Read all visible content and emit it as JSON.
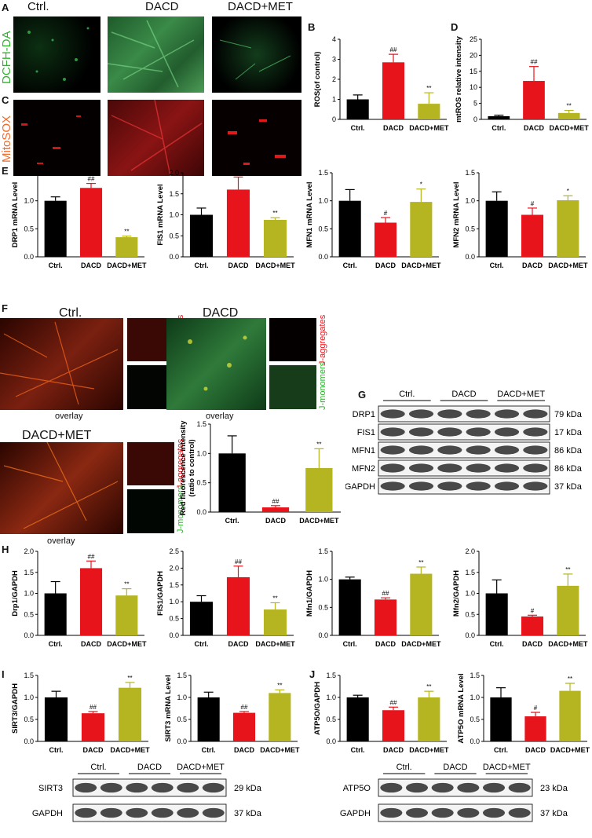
{
  "colors": {
    "ctrl": "#000000",
    "dacd": "#e8141c",
    "met": "#b5b522",
    "green_text": "#2bb52b",
    "red_text": "#e8141c",
    "orange_text": "#f06a2a"
  },
  "panels": {
    "A": "A",
    "B": "B",
    "C": "C",
    "D": "D",
    "E": "E",
    "F": "F",
    "G": "G",
    "H": "H",
    "I": "I",
    "J": "J"
  },
  "micro_a": {
    "col1": "Ctrl.",
    "col2": "DACD",
    "col3": "DACD+MET",
    "row_label": "DCFH-DA"
  },
  "micro_c": {
    "row_label": "MitoSOX"
  },
  "micro_f": {
    "ctrl_title": "Ctrl.",
    "dacd_title": "DACD",
    "met_title": "DACD+MET",
    "overlay": "overlay",
    "j_agg": "J-aggregates",
    "j_mono": "J-monomers"
  },
  "blot_g": {
    "groups": [
      "Ctrl.",
      "DACD",
      "DACD+MET"
    ],
    "rows": [
      {
        "name": "DRP1",
        "kda": "79 kDa"
      },
      {
        "name": "FIS1",
        "kda": "17 kDa"
      },
      {
        "name": "MFN1",
        "kda": "86 kDa"
      },
      {
        "name": "MFN2",
        "kda": "86 kDa"
      },
      {
        "name": "GAPDH",
        "kda": "37 kDa"
      }
    ]
  },
  "blot_i": {
    "groups": [
      "Ctrl.",
      "DACD",
      "DACD+MET"
    ],
    "rows": [
      {
        "name": "SIRT3",
        "kda": "29 kDa"
      },
      {
        "name": "GAPDH",
        "kda": "37 kDa"
      }
    ]
  },
  "blot_j": {
    "groups": [
      "Ctrl.",
      "DACD",
      "DACD+MET"
    ],
    "rows": [
      {
        "name": "ATP5O",
        "kda": "23 kDa"
      },
      {
        "name": "GAPDH",
        "kda": "37 kDa"
      }
    ]
  },
  "chart_data": [
    {
      "id": "B",
      "type": "bar",
      "categories": [
        "Ctrl.",
        "DACD",
        "DACD+MET"
      ],
      "values": [
        1.0,
        2.85,
        0.78
      ],
      "errors": [
        0.22,
        0.4,
        0.55
      ],
      "sig": [
        "",
        "##",
        "**"
      ],
      "ylabel": "ROS(of control)",
      "ylim": [
        0,
        4
      ],
      "yticks": [
        "0",
        "1",
        "2",
        "3",
        "4"
      ]
    },
    {
      "id": "D",
      "type": "bar",
      "categories": [
        "Ctrl.",
        "DACD",
        "DACD+MET"
      ],
      "values": [
        1.0,
        12.0,
        2.0
      ],
      "errors": [
        0.3,
        4.5,
        0.8
      ],
      "sig": [
        "",
        "##",
        "**"
      ],
      "ylabel": "mtROS relative intensity",
      "ylim": [
        0,
        25
      ],
      "yticks": [
        "0",
        "5",
        "10",
        "15",
        "20",
        "25"
      ]
    },
    {
      "id": "E1",
      "type": "bar",
      "categories": [
        "Ctrl.",
        "DACD",
        "DACD+MET"
      ],
      "values": [
        1.0,
        1.23,
        0.35
      ],
      "errors": [
        0.07,
        0.08,
        0.02
      ],
      "sig": [
        "",
        "##",
        "**"
      ],
      "ylabel": "DRP1 mRNA Level",
      "ylim": [
        0,
        1.5
      ],
      "yticks": [
        "0.0",
        "0.5",
        "1.0",
        "1.5"
      ]
    },
    {
      "id": "E2",
      "type": "bar",
      "categories": [
        "Ctrl.",
        "DACD",
        "DACD+MET"
      ],
      "values": [
        1.0,
        1.6,
        0.88
      ],
      "errors": [
        0.16,
        0.3,
        0.05
      ],
      "sig": [
        "",
        "##",
        "**"
      ],
      "ylabel": "FIS1 mRNA Level",
      "ylim": [
        0,
        2.0
      ],
      "yticks": [
        "0.0",
        "0.5",
        "1.0",
        "1.5",
        "2.0"
      ]
    },
    {
      "id": "E3",
      "type": "bar",
      "categories": [
        "Ctrl.",
        "DACD",
        "DACD+MET"
      ],
      "values": [
        1.0,
        0.61,
        0.98
      ],
      "errors": [
        0.2,
        0.09,
        0.23
      ],
      "sig": [
        "",
        "#",
        "*"
      ],
      "ylabel": "MFN1 mRNA Level",
      "ylim": [
        0,
        1.5
      ],
      "yticks": [
        "0.0",
        "0.5",
        "1.0",
        "1.5"
      ]
    },
    {
      "id": "E4",
      "type": "bar",
      "categories": [
        "Ctrl.",
        "DACD",
        "DACD+MET"
      ],
      "values": [
        1.0,
        0.75,
        1.01
      ],
      "errors": [
        0.16,
        0.12,
        0.08
      ],
      "sig": [
        "",
        "#",
        "*"
      ],
      "ylabel": "MFN2 mRNA Level",
      "ylim": [
        0,
        1.5
      ],
      "yticks": [
        "0.0",
        "0.5",
        "1.0",
        "1.5"
      ]
    },
    {
      "id": "F",
      "type": "bar",
      "categories": [
        "Ctrl.",
        "DACD",
        "DACD+MET"
      ],
      "values": [
        1.0,
        0.08,
        0.75
      ],
      "errors": [
        0.3,
        0.03,
        0.33
      ],
      "sig": [
        "",
        "##",
        "**"
      ],
      "ylabel": "Red fluorescence intensity\n(ratio to control)",
      "ylim": [
        0,
        1.5
      ],
      "yticks": [
        "0.0",
        "0.5",
        "1.0",
        "1.5"
      ]
    },
    {
      "id": "H1",
      "type": "bar",
      "categories": [
        "Ctrl.",
        "DACD",
        "DACD+MET"
      ],
      "values": [
        1.0,
        1.6,
        0.95
      ],
      "errors": [
        0.28,
        0.17,
        0.16
      ],
      "sig": [
        "",
        "##",
        "**"
      ],
      "ylabel": "Drp1/GAPDH",
      "ylim": [
        0,
        2.0
      ],
      "yticks": [
        "0.0",
        "0.5",
        "1.0",
        "1.5",
        "2.0"
      ]
    },
    {
      "id": "H2",
      "type": "bar",
      "categories": [
        "Ctrl.",
        "DACD",
        "DACD+MET"
      ],
      "values": [
        1.0,
        1.73,
        0.77
      ],
      "errors": [
        0.18,
        0.33,
        0.2
      ],
      "sig": [
        "",
        "##",
        "**"
      ],
      "ylabel": "FIS1/GAPDH",
      "ylim": [
        0,
        2.5
      ],
      "yticks": [
        "0.0",
        "0.5",
        "1.0",
        "1.5",
        "2.0",
        "2.5"
      ]
    },
    {
      "id": "H3",
      "type": "bar",
      "categories": [
        "Ctrl.",
        "DACD",
        "DACD+MET"
      ],
      "values": [
        1.0,
        0.64,
        1.1
      ],
      "errors": [
        0.04,
        0.03,
        0.12
      ],
      "sig": [
        "",
        "##",
        "**"
      ],
      "ylabel": "Mfn1/GAPDH",
      "ylim": [
        0,
        1.5
      ],
      "yticks": [
        "0.0",
        "0.5",
        "1.0",
        "1.5"
      ]
    },
    {
      "id": "H4",
      "type": "bar",
      "categories": [
        "Ctrl.",
        "DACD",
        "DACD+MET"
      ],
      "values": [
        1.0,
        0.45,
        1.18
      ],
      "errors": [
        0.32,
        0.03,
        0.28
      ],
      "sig": [
        "",
        "#",
        "**"
      ],
      "ylabel": "Mfn2/GAPDH",
      "ylim": [
        0,
        2.0
      ],
      "yticks": [
        "0.0",
        "0.5",
        "1.0",
        "1.5",
        "2.0"
      ]
    },
    {
      "id": "I1",
      "type": "bar",
      "categories": [
        "Ctrl.",
        "DACD",
        "DACD+MET"
      ],
      "values": [
        1.0,
        0.64,
        1.22
      ],
      "errors": [
        0.14,
        0.04,
        0.12
      ],
      "sig": [
        "",
        "##",
        "**"
      ],
      "ylabel": "SIRT3/GAPDH",
      "ylim": [
        0,
        1.5
      ],
      "yticks": [
        "0.0",
        "0.5",
        "1.0",
        "1.5"
      ]
    },
    {
      "id": "I2",
      "type": "bar",
      "categories": [
        "Ctrl.",
        "DACD",
        "DACD+MET"
      ],
      "values": [
        1.0,
        0.65,
        1.1
      ],
      "errors": [
        0.12,
        0.03,
        0.07
      ],
      "sig": [
        "",
        "##",
        "**"
      ],
      "ylabel": "SIRT3 mRNA Level",
      "ylim": [
        0,
        1.5
      ],
      "yticks": [
        "0.0",
        "0.5",
        "1.0",
        "1.5"
      ]
    },
    {
      "id": "J1",
      "type": "bar",
      "categories": [
        "Ctrl.",
        "DACD",
        "DACD+MET"
      ],
      "values": [
        1.0,
        0.71,
        1.0
      ],
      "errors": [
        0.05,
        0.07,
        0.14
      ],
      "sig": [
        "",
        "##",
        "**"
      ],
      "ylabel": "ATP5O/GAPDH",
      "ylim": [
        0,
        1.5
      ],
      "yticks": [
        "0.0",
        "0.5",
        "1.0",
        "1.5"
      ]
    },
    {
      "id": "J2",
      "type": "bar",
      "categories": [
        "Ctrl.",
        "DACD",
        "DACD+MET"
      ],
      "values": [
        1.0,
        0.57,
        1.15
      ],
      "errors": [
        0.22,
        0.09,
        0.17
      ],
      "sig": [
        "",
        "#",
        "**"
      ],
      "ylabel": "ATP5O mRNA Level",
      "ylim": [
        0,
        1.5
      ],
      "yticks": [
        "0.0",
        "0.5",
        "1.0",
        "1.5"
      ]
    }
  ]
}
